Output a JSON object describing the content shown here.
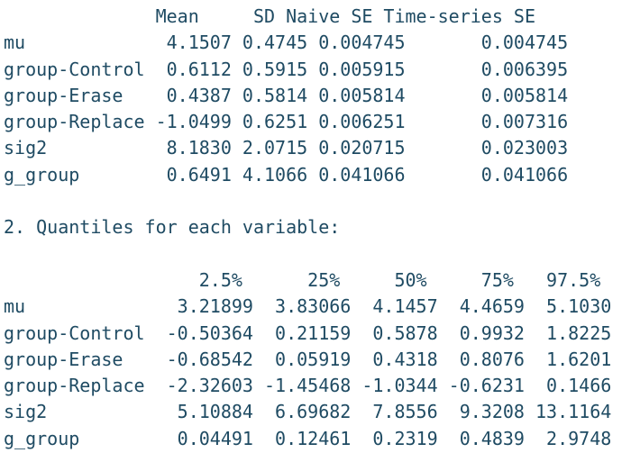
{
  "summary_table": {
    "header": "              Mean     SD Naive SE Time-series SE",
    "rows": [
      "mu             4.1507 0.4745 0.004745       0.004745",
      "group-Control  0.6112 0.5915 0.005915       0.006395",
      "group-Erase    0.4387 0.5814 0.005814       0.005814",
      "group-Replace -1.0499 0.6251 0.006251       0.007316",
      "sig2           8.1830 2.0715 0.020715       0.023003",
      "g_group        0.6491 4.1066 0.041066       0.041066"
    ]
  },
  "quantiles_heading": "2. Quantiles for each variable:",
  "quantiles_table": {
    "header": "                  2.5%      25%     50%     75%   97.5%",
    "rows": [
      "mu              3.21899  3.83066  4.1457  4.4659  5.1030",
      "group-Control  -0.50364  0.21159  0.5878  0.9932  1.8225",
      "group-Erase    -0.68542  0.05919  0.4318  0.8076  1.6201",
      "group-Replace  -2.32603 -1.45468 -1.0344 -0.6231  0.1466",
      "sig2            5.10884  6.69682  7.8556  9.3208 13.1164",
      "g_group         0.04491  0.12461  0.2319  0.4839  2.9748"
    ]
  },
  "colors": {
    "text": "#1f4b63",
    "background": "#ffffff"
  }
}
